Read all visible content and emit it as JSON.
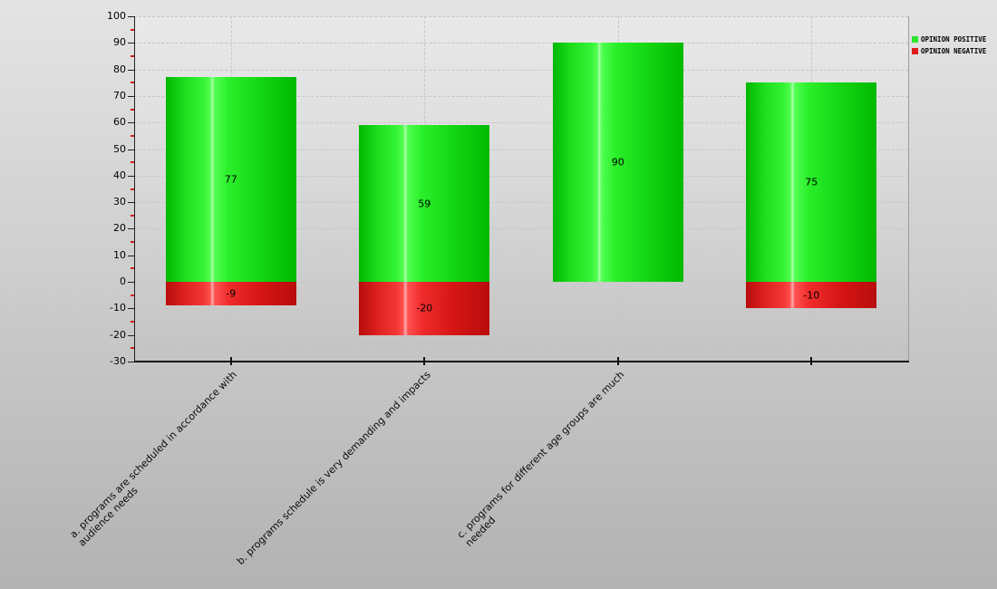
{
  "chart_data": {
    "type": "bar",
    "title": "",
    "categories": [
      "a. programs are scheduled in accordance with audience needs",
      "b. programs schedule is very demanding and impacts",
      "c. programs for different age groups are much needed",
      ""
    ],
    "category_label_lines": [
      [
        "a. programs are scheduled in accordance with",
        "audience needs"
      ],
      [
        "b. programs schedule is very demanding and impacts"
      ],
      [
        "c. programs for different age groups are much",
        "needed"
      ],
      []
    ],
    "series": [
      {
        "name": "OPINION POSITIVE",
        "color": "#2ce62c",
        "values": [
          77,
          59,
          90,
          75
        ]
      },
      {
        "name": "OPINION NEGATIVE",
        "color": "#e11a1a",
        "values": [
          -9,
          -20,
          null,
          -10
        ]
      }
    ],
    "ylim": [
      -30,
      100
    ],
    "yticks": [
      100,
      90,
      80,
      70,
      60,
      50,
      40,
      30,
      20,
      10,
      0,
      -10,
      -20,
      -30
    ],
    "minor_tick_step": 5,
    "minor_tick_color": "#d02020",
    "grid": "dashed",
    "legend_position": "top-right",
    "bar_value_labels": true,
    "xlabel": "",
    "ylabel": ""
  }
}
